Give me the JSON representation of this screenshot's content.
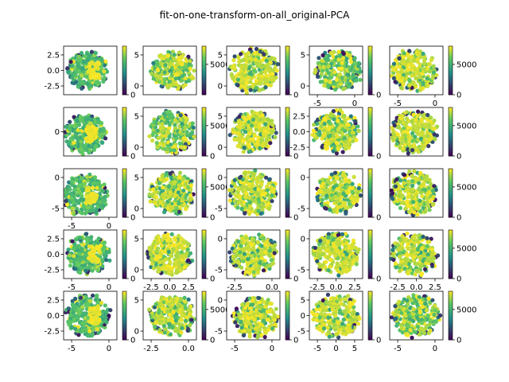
{
  "chart_data": {
    "type": "scatter",
    "title": "fit-on-one-transform-on-all_original-PCA",
    "grid": {
      "rows": 5,
      "cols": 5
    },
    "colormap": "viridis",
    "colors": {
      "low": "#440154",
      "mid": "#21918c",
      "high": "#fde725",
      "green": "#5ec962"
    },
    "panels": [
      {
        "xlim": [
          -10,
          2
        ],
        "ylim": [
          -5,
          4.5
        ],
        "xticks": [],
        "yticks": [
          "-2.5",
          "0.0",
          "2.5"
        ],
        "cticks": [
          0
        ],
        "cmax": 8000,
        "cx": 0.45,
        "cy": 0.5,
        "radius": 0.38,
        "hot": 0.15
      },
      {
        "xlim": [
          -6,
          6
        ],
        "ylim": [
          -5,
          5
        ],
        "xticks": [],
        "yticks": [
          "0",
          "5"
        ],
        "cticks": [
          5000
        ],
        "cmax": 8000,
        "cx": 0.55,
        "cy": 0.5,
        "radius": 0.4,
        "hot": 0.6
      },
      {
        "xlim": [
          -6,
          6
        ],
        "ylim": [
          -5,
          5
        ],
        "xticks": [],
        "yticks": [
          "0",
          "5"
        ],
        "cticks": [
          0
        ],
        "cmax": 8000,
        "cx": 0.5,
        "cy": 0.5,
        "radius": 0.45,
        "hot": 0.9
      },
      {
        "xlim": [
          -8,
          4
        ],
        "ylim": [
          -3,
          5
        ],
        "xticks": [
          "-5",
          "0"
        ],
        "yticks": [
          "0",
          "5"
        ],
        "cticks": [
          0
        ],
        "cmax": 8000,
        "cx": 0.55,
        "cy": 0.5,
        "radius": 0.42,
        "hot": 0.5
      },
      {
        "xlim": [
          -8,
          4
        ],
        "ylim": [
          -5,
          4
        ],
        "xticks": [
          "-5",
          "0"
        ],
        "yticks": [],
        "cticks": [
          0,
          5000
        ],
        "cmax": 8000,
        "cx": 0.45,
        "cy": 0.5,
        "radius": 0.43,
        "hot": 0.85
      },
      {
        "xlim": [
          -6,
          4
        ],
        "ylim": [
          -5,
          5
        ],
        "xticks": [],
        "yticks": [
          "0"
        ],
        "cticks": [
          0
        ],
        "cmax": 8000,
        "cx": 0.4,
        "cy": 0.55,
        "radius": 0.4,
        "hot": 0.12
      },
      {
        "xlim": [
          -6,
          6
        ],
        "ylim": [
          -5,
          5
        ],
        "xticks": [],
        "yticks": [
          "0",
          "5"
        ],
        "cticks": [
          0,
          5000
        ],
        "cmax": 8000,
        "cx": 0.55,
        "cy": 0.5,
        "radius": 0.42,
        "hot": 0.5
      },
      {
        "xlim": [
          -6,
          6
        ],
        "ylim": [
          -5,
          5
        ],
        "xticks": [],
        "yticks": [
          "0",
          "5"
        ],
        "cticks": [
          0
        ],
        "cmax": 8000,
        "cx": 0.5,
        "cy": 0.5,
        "radius": 0.42,
        "hot": 0.85
      },
      {
        "xlim": [
          -6,
          6
        ],
        "ylim": [
          -5,
          5
        ],
        "xticks": [],
        "yticks": [
          "-2.5",
          "0.0",
          "2.5"
        ],
        "cticks": [
          0
        ],
        "cmax": 8000,
        "cx": 0.5,
        "cy": 0.5,
        "radius": 0.43,
        "hot": 0.7
      },
      {
        "xlim": [
          -8,
          6
        ],
        "ylim": [
          -5,
          5
        ],
        "xticks": [],
        "yticks": [],
        "cticks": [
          0,
          5000
        ],
        "cmax": 8000,
        "cx": 0.45,
        "cy": 0.5,
        "radius": 0.43,
        "hot": 0.8
      },
      {
        "xlim": [
          -7,
          4
        ],
        "ylim": [
          -7,
          4
        ],
        "xticks": [
          "-5",
          "0"
        ],
        "yticks": [
          "-5",
          "0"
        ],
        "cticks": [
          0
        ],
        "cmax": 8000,
        "cx": 0.4,
        "cy": 0.55,
        "radius": 0.42,
        "hot": 0.1
      },
      {
        "xlim": [
          -6,
          6
        ],
        "ylim": [
          -5,
          5
        ],
        "xticks": [],
        "yticks": [
          "0",
          "5"
        ],
        "cticks": [
          0,
          5000
        ],
        "cmax": 8000,
        "cx": 0.55,
        "cy": 0.5,
        "radius": 0.42,
        "hot": 0.6
      },
      {
        "xlim": [
          -6,
          6
        ],
        "ylim": [
          -5,
          5
        ],
        "xticks": [],
        "yticks": [
          "-5",
          "0"
        ],
        "cticks": [
          0
        ],
        "cmax": 8000,
        "cx": 0.5,
        "cy": 0.5,
        "radius": 0.44,
        "hot": 0.85
      },
      {
        "xlim": [
          -6,
          6
        ],
        "ylim": [
          -5,
          5
        ],
        "xticks": [],
        "yticks": [
          "-5",
          "0"
        ],
        "cticks": [
          0
        ],
        "cmax": 8000,
        "cx": 0.55,
        "cy": 0.5,
        "radius": 0.42,
        "hot": 0.7
      },
      {
        "xlim": [
          -8,
          6
        ],
        "ylim": [
          -5,
          5
        ],
        "xticks": [],
        "yticks": [],
        "cticks": [
          0,
          5000
        ],
        "cmax": 8000,
        "cx": 0.45,
        "cy": 0.5,
        "radius": 0.43,
        "hot": 0.75
      },
      {
        "xlim": [
          -7,
          4
        ],
        "ylim": [
          -4,
          4.5
        ],
        "xticks": [
          "-5",
          "0"
        ],
        "yticks": [
          "-2.5",
          "0.0",
          "2.5"
        ],
        "cticks": [
          0
        ],
        "cmax": 8000,
        "cx": 0.45,
        "cy": 0.5,
        "radius": 0.4,
        "hot": 0.15
      },
      {
        "xlim": [
          -6,
          6
        ],
        "ylim": [
          -5,
          5
        ],
        "xticks": [
          "-2.5",
          "0.0",
          "2.5"
        ],
        "yticks": [
          "0",
          "5"
        ],
        "cticks": [
          0
        ],
        "cmax": 8000,
        "cx": 0.5,
        "cy": 0.5,
        "radius": 0.42,
        "hot": 0.8
      },
      {
        "xlim": [
          -6,
          6
        ],
        "ylim": [
          -5,
          5
        ],
        "xticks": [
          "-2.5",
          "0.0"
        ],
        "yticks": [
          "-5",
          "0"
        ],
        "cticks": [
          0
        ],
        "cmax": 8000,
        "cx": 0.5,
        "cy": 0.5,
        "radius": 0.43,
        "hot": 0.7
      },
      {
        "xlim": [
          -6,
          6
        ],
        "ylim": [
          -5,
          5
        ],
        "xticks": [
          "-2.5",
          "0.0",
          "2.5"
        ],
        "yticks": [
          "-5",
          "0"
        ],
        "cticks": [
          0
        ],
        "cmax": 8000,
        "cx": 0.5,
        "cy": 0.5,
        "radius": 0.43,
        "hot": 0.85
      },
      {
        "xlim": [
          -8,
          6
        ],
        "ylim": [
          -5,
          5
        ],
        "xticks": [
          "-2.5",
          "0.0",
          "2.5"
        ],
        "yticks": [],
        "cticks": [
          0,
          5000
        ],
        "cmax": 8000,
        "cx": 0.45,
        "cy": 0.5,
        "radius": 0.43,
        "hot": 0.75
      },
      {
        "xlim": [
          -6,
          3
        ],
        "ylim": [
          -4.5,
          4.5
        ],
        "xticks": [
          "-5",
          "0"
        ],
        "yticks": [
          "-2.5",
          "0.0",
          "2.5"
        ],
        "cticks": [
          0
        ],
        "cmax": 8000,
        "cx": 0.45,
        "cy": 0.5,
        "radius": 0.42,
        "hot": 0.15
      },
      {
        "xlim": [
          -5,
          1.5
        ],
        "ylim": [
          -5,
          5
        ],
        "xticks": [
          "-2.5",
          "0.0"
        ],
        "yticks": [
          "0",
          "5"
        ],
        "cticks": [
          0,
          5000
        ],
        "cmax": 8000,
        "cx": 0.55,
        "cy": 0.5,
        "radius": 0.42,
        "hot": 0.7
      },
      {
        "xlim": [
          -6,
          2
        ],
        "ylim": [
          -7,
          3
        ],
        "xticks": [
          "-5",
          "0"
        ],
        "yticks": [
          "-5",
          "0"
        ],
        "cticks": [
          0
        ],
        "cmax": 8000,
        "cx": 0.55,
        "cy": 0.55,
        "radius": 0.42,
        "hot": 0.8
      },
      {
        "xlim": [
          -7,
          4
        ],
        "ylim": [
          -5,
          5
        ],
        "xticks": [
          "-5",
          "0",
          "5"
        ],
        "yticks": [
          "-5",
          "0",
          "5"
        ],
        "cticks": [
          0
        ],
        "cmax": 8000,
        "cx": 0.5,
        "cy": 0.5,
        "radius": 0.44,
        "hot": 0.75
      },
      {
        "xlim": [
          -8,
          5
        ],
        "ylim": [
          -5,
          5
        ],
        "xticks": [
          "-5",
          "0"
        ],
        "yticks": [],
        "cticks": [
          0,
          5000
        ],
        "cmax": 8000,
        "cx": 0.5,
        "cy": 0.5,
        "radius": 0.43,
        "hot": 0.6
      }
    ]
  }
}
